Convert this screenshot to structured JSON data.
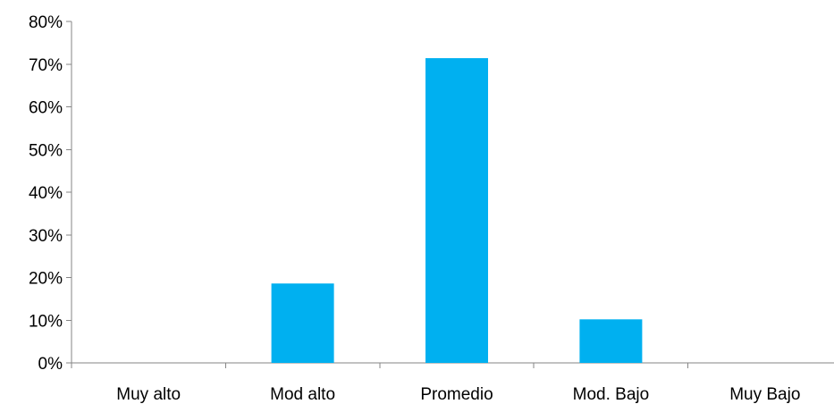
{
  "chart_data": {
    "type": "bar",
    "categories": [
      "Muy alto",
      "Mod alto",
      "Promedio",
      "Mod. Bajo",
      "Muy Bajo"
    ],
    "values": [
      0,
      18.6,
      71.4,
      10.2,
      0
    ],
    "y_unit": "%",
    "ylim": [
      0,
      80
    ],
    "yticks": [
      0,
      10,
      20,
      30,
      40,
      50,
      60,
      70,
      80
    ],
    "grid": false,
    "legend": "none",
    "bar_color": "#00B0F0",
    "axis_color": "#868686"
  }
}
